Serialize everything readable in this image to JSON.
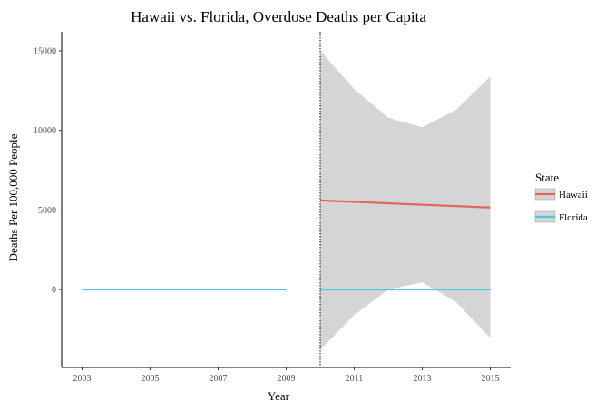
{
  "chart_data": {
    "type": "line",
    "title": "Hawaii vs. Florida, Overdose Deaths per Capita",
    "xlabel": "Year",
    "ylabel": "Deaths Per 100,000 People",
    "xlim": [
      2002.4,
      2015.6
    ],
    "ylim": [
      -4900,
      16200
    ],
    "xticks": [
      2003,
      2005,
      2007,
      2009,
      2011,
      2013,
      2015
    ],
    "yticks": [
      0,
      5000,
      10000,
      15000
    ],
    "ytick_labels": [
      "0",
      "5000",
      "10000",
      "15000"
    ],
    "policy_line_x": 2010,
    "grid": false,
    "legend": {
      "title": "State",
      "position": "right"
    },
    "series": [
      {
        "name": "Hawaii",
        "color": "#e0665d",
        "segments": [
          {
            "x": [
              2010,
              2015
            ],
            "y": [
              5600,
              5150
            ]
          }
        ]
      },
      {
        "name": "Florida",
        "color": "#4ec9d6",
        "segments": [
          {
            "x": [
              2003,
              2009
            ],
            "y": [
              0,
              0
            ]
          },
          {
            "x": [
              2010,
              2015
            ],
            "y": [
              0,
              0
            ]
          }
        ]
      }
    ],
    "confidence_band": {
      "color": "#d5d5d5",
      "x": [
        2010,
        2011,
        2012,
        2013,
        2014,
        2015
      ],
      "upper": [
        15000,
        12600,
        10800,
        10200,
        11300,
        13400
      ],
      "lower": [
        -3800,
        -1600,
        0,
        450,
        -800,
        -3050
      ]
    }
  }
}
